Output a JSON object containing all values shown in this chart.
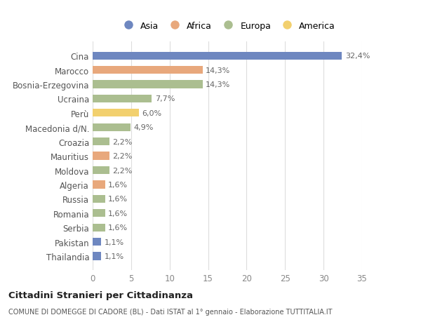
{
  "categories": [
    "Cina",
    "Marocco",
    "Bosnia-Erzegovina",
    "Ucraina",
    "Perù",
    "Macedonia d/N.",
    "Croazia",
    "Mauritius",
    "Moldova",
    "Algeria",
    "Russia",
    "Romania",
    "Serbia",
    "Pakistan",
    "Thailandia"
  ],
  "values": [
    32.4,
    14.3,
    14.3,
    7.7,
    6.0,
    4.9,
    2.2,
    2.2,
    2.2,
    1.6,
    1.6,
    1.6,
    1.6,
    1.1,
    1.1
  ],
  "labels": [
    "32,4%",
    "14,3%",
    "14,3%",
    "7,7%",
    "6,0%",
    "4,9%",
    "2,2%",
    "2,2%",
    "2,2%",
    "1,6%",
    "1,6%",
    "1,6%",
    "1,6%",
    "1,1%",
    "1,1%"
  ],
  "continents": [
    "Asia",
    "Africa",
    "Europa",
    "Europa",
    "America",
    "Europa",
    "Europa",
    "Africa",
    "Europa",
    "Africa",
    "Europa",
    "Europa",
    "Europa",
    "Asia",
    "Asia"
  ],
  "colors": {
    "Asia": "#6e87c0",
    "Africa": "#e8a87c",
    "Europa": "#abbe90",
    "America": "#f2d06e"
  },
  "legend_order": [
    "Asia",
    "Africa",
    "Europa",
    "America"
  ],
  "title": "Cittadini Stranieri per Cittadinanza",
  "subtitle": "COMUNE DI DOMEGGE DI CADORE (BL) - Dati ISTAT al 1° gennaio - Elaborazione TUTTITALIA.IT",
  "xlim": [
    0,
    35
  ],
  "xticks": [
    0,
    5,
    10,
    15,
    20,
    25,
    30,
    35
  ],
  "bg_color": "#ffffff",
  "grid_color": "#dddddd"
}
